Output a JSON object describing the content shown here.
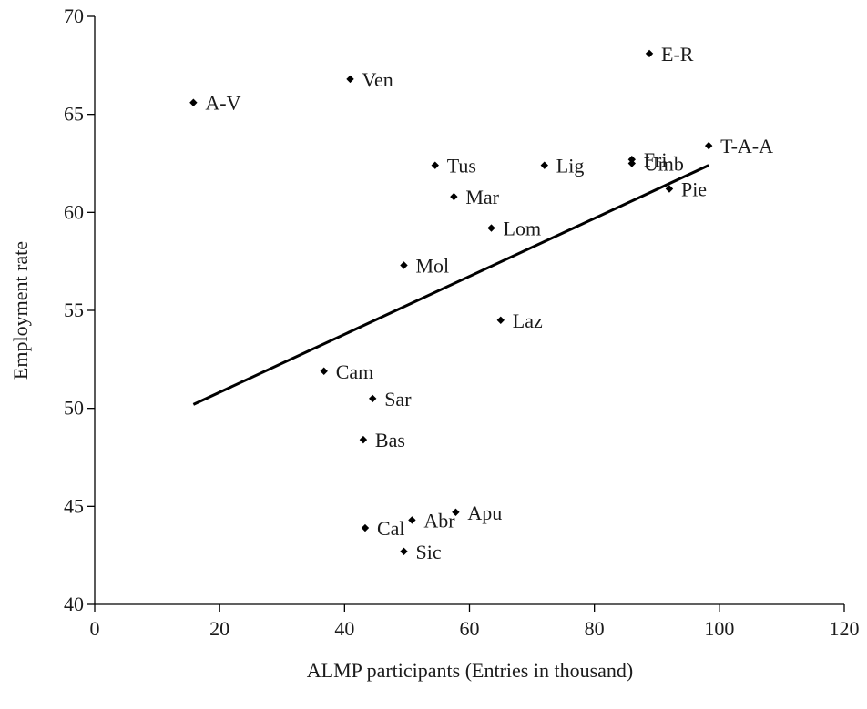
{
  "chart_data": {
    "type": "scatter",
    "title": "",
    "xlabel": "ALMP participants (Entries in thousand)",
    "ylabel": "Employment rate",
    "xlim": [
      0,
      120
    ],
    "ylim": [
      40,
      70
    ],
    "xticks": [
      0,
      20,
      40,
      60,
      80,
      100,
      120
    ],
    "yticks": [
      40,
      45,
      50,
      55,
      60,
      65,
      70
    ],
    "grid": false,
    "legend": "none",
    "marker": "diamond",
    "marker_color": "#000000",
    "points": [
      {
        "label": "A-V",
        "x": 15.8,
        "y": 65.6
      },
      {
        "label": "Ven",
        "x": 40.9,
        "y": 66.8
      },
      {
        "label": "E-R",
        "x": 88.8,
        "y": 68.1
      },
      {
        "label": "T-A-A",
        "x": 98.3,
        "y": 63.4
      },
      {
        "label": "Fri",
        "x": 86.0,
        "y": 62.7
      },
      {
        "label": "Umb",
        "x": 86.0,
        "y": 62.5
      },
      {
        "label": "Tus",
        "x": 54.5,
        "y": 62.4
      },
      {
        "label": "Lig",
        "x": 72.0,
        "y": 62.4
      },
      {
        "label": "Pie",
        "x": 92.0,
        "y": 61.2
      },
      {
        "label": "Mar",
        "x": 57.5,
        "y": 60.8
      },
      {
        "label": "Lom",
        "x": 63.5,
        "y": 59.2
      },
      {
        "label": "Mol",
        "x": 49.5,
        "y": 57.3
      },
      {
        "label": "Laz",
        "x": 65.0,
        "y": 54.5
      },
      {
        "label": "Cam",
        "x": 36.7,
        "y": 51.9
      },
      {
        "label": "Sar",
        "x": 44.5,
        "y": 50.5
      },
      {
        "label": "Bas",
        "x": 43.0,
        "y": 48.4
      },
      {
        "label": "Apu",
        "x": 57.8,
        "y": 44.7
      },
      {
        "label": "Abr",
        "x": 50.8,
        "y": 44.3
      },
      {
        "label": "Cal",
        "x": 43.3,
        "y": 43.9
      },
      {
        "label": "Sic",
        "x": 49.5,
        "y": 42.7
      }
    ],
    "trendline": {
      "type": "linear",
      "from": {
        "x": 15.8,
        "y": 50.2
      },
      "to": {
        "x": 98.3,
        "y": 62.4
      },
      "color": "#000000"
    }
  }
}
